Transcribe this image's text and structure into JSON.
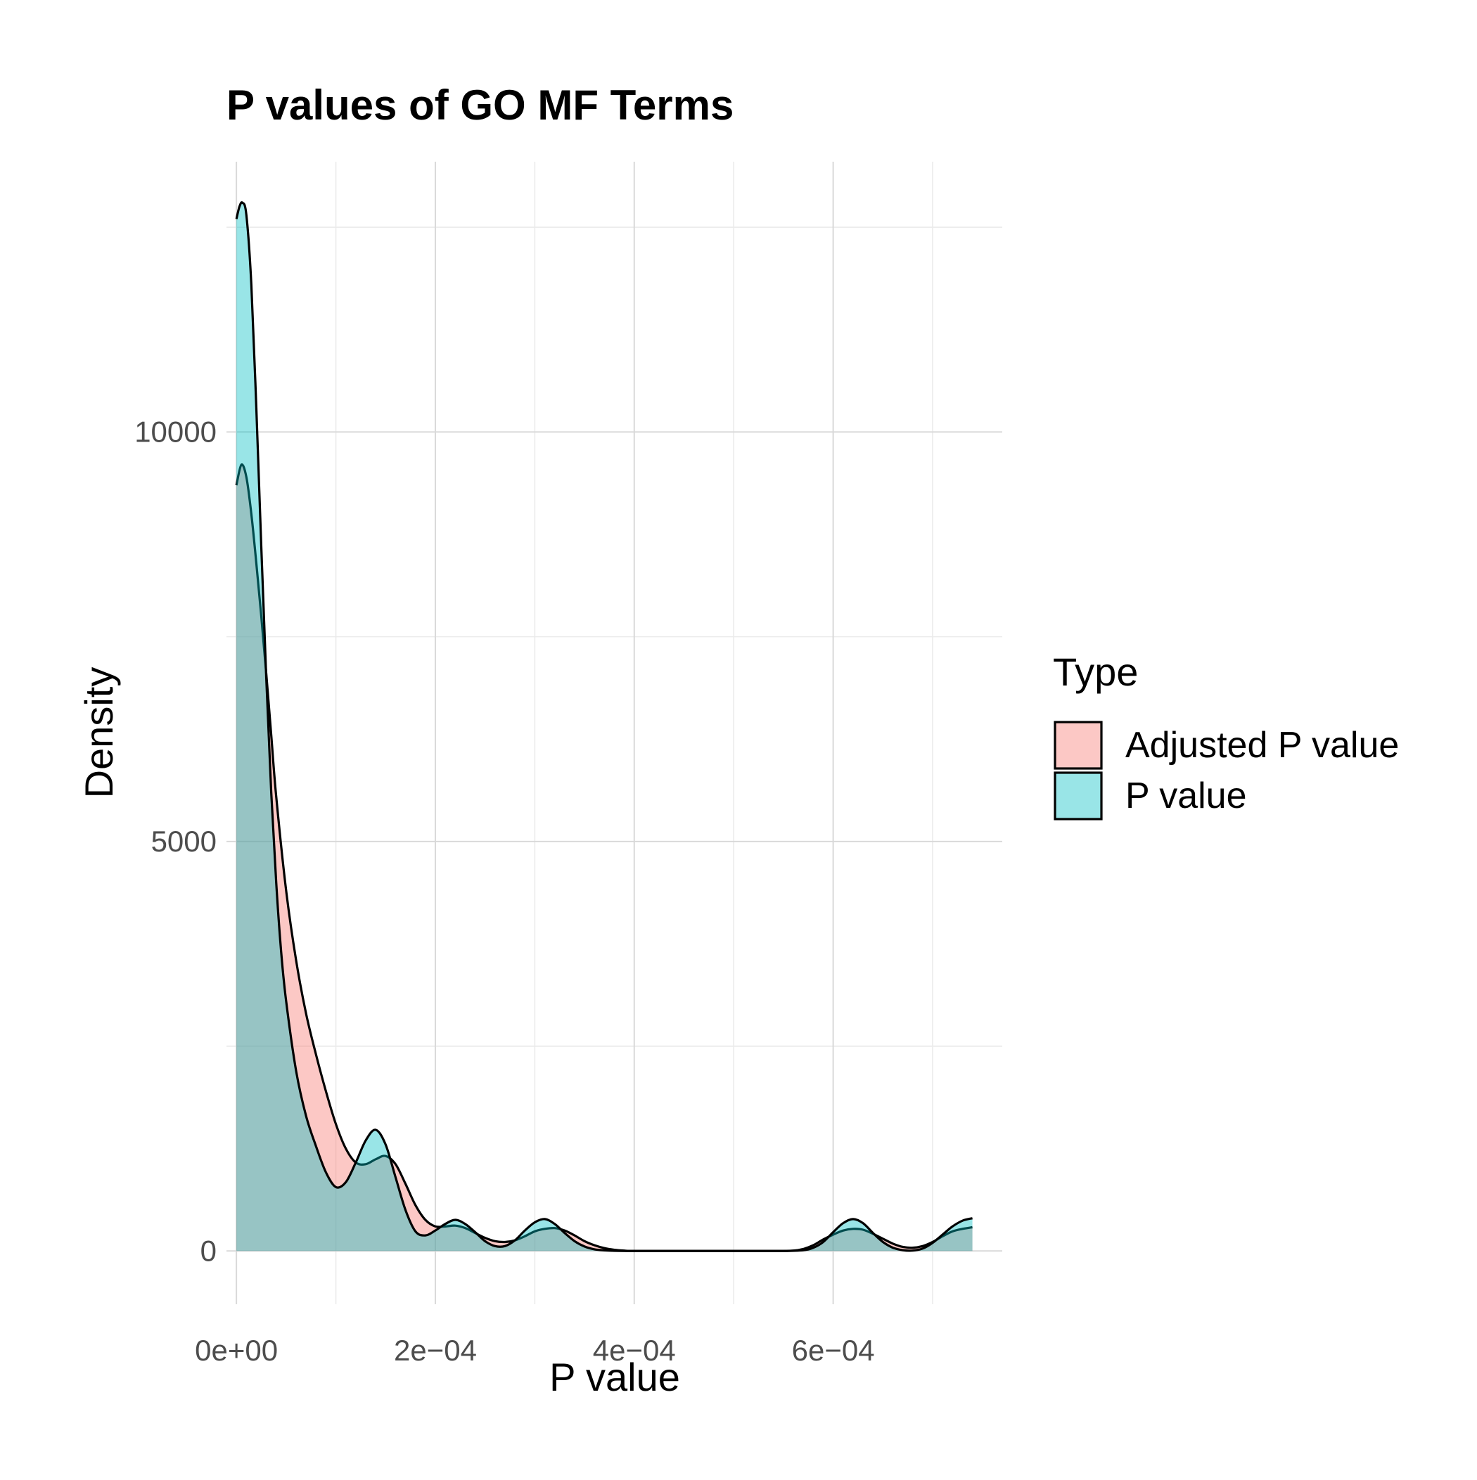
{
  "chart_data": {
    "type": "area",
    "title": "P values of GO MF Terms",
    "xlabel": "P value",
    "ylabel": "Density",
    "xlim": [
      -1e-05,
      0.00077
    ],
    "ylim": [
      -650,
      13300
    ],
    "x_ticks": [
      0,
      0.0002,
      0.0004,
      0.0006
    ],
    "x_tick_labels": [
      "0e+00",
      "2e−04",
      "4e−04",
      "6e−04"
    ],
    "x_minor_ticks": [
      0.0001,
      0.0003,
      0.0005,
      0.0007
    ],
    "y_ticks": [
      0,
      5000,
      10000
    ],
    "y_tick_labels": [
      "0",
      "5000",
      "10000"
    ],
    "y_minor_ticks": [
      2500,
      7500,
      12500
    ],
    "grid": true,
    "legend": {
      "title": "Type",
      "position": "right",
      "entries": [
        "Adjusted P value",
        "P value"
      ]
    },
    "series": [
      {
        "name": "Adjusted P value",
        "color": "#F8766D",
        "points": [
          [
            0,
            9350
          ],
          [
            5e-06,
            9600
          ],
          [
            1e-05,
            9450
          ],
          [
            1.5e-05,
            9000
          ],
          [
            2e-05,
            8400
          ],
          [
            2.5e-05,
            7750
          ],
          [
            3e-05,
            7050
          ],
          [
            3.5e-05,
            6300
          ],
          [
            4e-05,
            5550
          ],
          [
            5e-05,
            4400
          ],
          [
            6e-05,
            3550
          ],
          [
            7e-05,
            2900
          ],
          [
            8e-05,
            2400
          ],
          [
            9e-05,
            1950
          ],
          [
            0.0001,
            1550
          ],
          [
            0.00011,
            1250
          ],
          [
            0.00012,
            1080
          ],
          [
            0.00013,
            1060
          ],
          [
            0.00014,
            1120
          ],
          [
            0.00015,
            1160
          ],
          [
            0.00016,
            1060
          ],
          [
            0.00017,
            820
          ],
          [
            0.00018,
            560
          ],
          [
            0.00019,
            380
          ],
          [
            0.0002,
            300
          ],
          [
            0.00021,
            300
          ],
          [
            0.00022,
            310
          ],
          [
            0.00023,
            280
          ],
          [
            0.00024,
            220
          ],
          [
            0.00025,
            160
          ],
          [
            0.00026,
            120
          ],
          [
            0.00027,
            110
          ],
          [
            0.00028,
            130
          ],
          [
            0.00029,
            180
          ],
          [
            0.0003,
            240
          ],
          [
            0.00031,
            270
          ],
          [
            0.00032,
            280
          ],
          [
            0.00033,
            250
          ],
          [
            0.00034,
            190
          ],
          [
            0.00035,
            120
          ],
          [
            0.00036,
            70
          ],
          [
            0.00037,
            35
          ],
          [
            0.00038,
            15
          ],
          [
            0.00039,
            5
          ],
          [
            0.0004,
            0
          ],
          [
            0.00045,
            0
          ],
          [
            0.0005,
            0
          ],
          [
            0.00054,
            0
          ],
          [
            0.00056,
            5
          ],
          [
            0.00057,
            25
          ],
          [
            0.00058,
            70
          ],
          [
            0.00059,
            140
          ],
          [
            0.0006,
            200
          ],
          [
            0.00061,
            250
          ],
          [
            0.00062,
            270
          ],
          [
            0.00063,
            260
          ],
          [
            0.00064,
            210
          ],
          [
            0.00065,
            150
          ],
          [
            0.00066,
            90
          ],
          [
            0.00067,
            50
          ],
          [
            0.00068,
            40
          ],
          [
            0.00069,
            60
          ],
          [
            0.0007,
            110
          ],
          [
            0.00071,
            180
          ],
          [
            0.00072,
            240
          ],
          [
            0.00073,
            270
          ],
          [
            0.00074,
            290
          ]
        ]
      },
      {
        "name": "P value",
        "color": "#00BFC4",
        "points": [
          [
            0,
            12600
          ],
          [
            3e-06,
            12750
          ],
          [
            6e-06,
            12800
          ],
          [
            1e-05,
            12650
          ],
          [
            1.5e-05,
            11800
          ],
          [
            2e-05,
            10300
          ],
          [
            2.5e-05,
            8600
          ],
          [
            3e-05,
            7000
          ],
          [
            3.5e-05,
            5600
          ],
          [
            4e-05,
            4500
          ],
          [
            4.5e-05,
            3650
          ],
          [
            5e-05,
            3050
          ],
          [
            6e-05,
            2200
          ],
          [
            7e-05,
            1650
          ],
          [
            8e-05,
            1280
          ],
          [
            9e-05,
            960
          ],
          [
            0.0001,
            780
          ],
          [
            0.00011,
            840
          ],
          [
            0.00012,
            1080
          ],
          [
            0.00013,
            1350
          ],
          [
            0.00014,
            1480
          ],
          [
            0.00015,
            1300
          ],
          [
            0.00016,
            900
          ],
          [
            0.00017,
            500
          ],
          [
            0.00018,
            240
          ],
          [
            0.00019,
            190
          ],
          [
            0.0002,
            250
          ],
          [
            0.00021,
            330
          ],
          [
            0.00022,
            380
          ],
          [
            0.00023,
            330
          ],
          [
            0.00024,
            230
          ],
          [
            0.00025,
            120
          ],
          [
            0.00026,
            60
          ],
          [
            0.00027,
            60
          ],
          [
            0.00028,
            130
          ],
          [
            0.00029,
            250
          ],
          [
            0.0003,
            350
          ],
          [
            0.00031,
            390
          ],
          [
            0.00032,
            330
          ],
          [
            0.00033,
            220
          ],
          [
            0.00034,
            120
          ],
          [
            0.00035,
            55
          ],
          [
            0.00036,
            20
          ],
          [
            0.00037,
            8
          ],
          [
            0.00038,
            2
          ],
          [
            0.0004,
            0
          ],
          [
            0.00045,
            0
          ],
          [
            0.0005,
            0
          ],
          [
            0.00055,
            0
          ],
          [
            0.00057,
            10
          ],
          [
            0.00058,
            40
          ],
          [
            0.00059,
            110
          ],
          [
            0.0006,
            230
          ],
          [
            0.00061,
            340
          ],
          [
            0.00062,
            390
          ],
          [
            0.00063,
            340
          ],
          [
            0.00064,
            220
          ],
          [
            0.00065,
            110
          ],
          [
            0.00066,
            40
          ],
          [
            0.00067,
            10
          ],
          [
            0.00068,
            5
          ],
          [
            0.00069,
            30
          ],
          [
            0.0007,
            100
          ],
          [
            0.00071,
            200
          ],
          [
            0.00072,
            300
          ],
          [
            0.00073,
            370
          ],
          [
            0.00074,
            400
          ]
        ]
      }
    ]
  }
}
